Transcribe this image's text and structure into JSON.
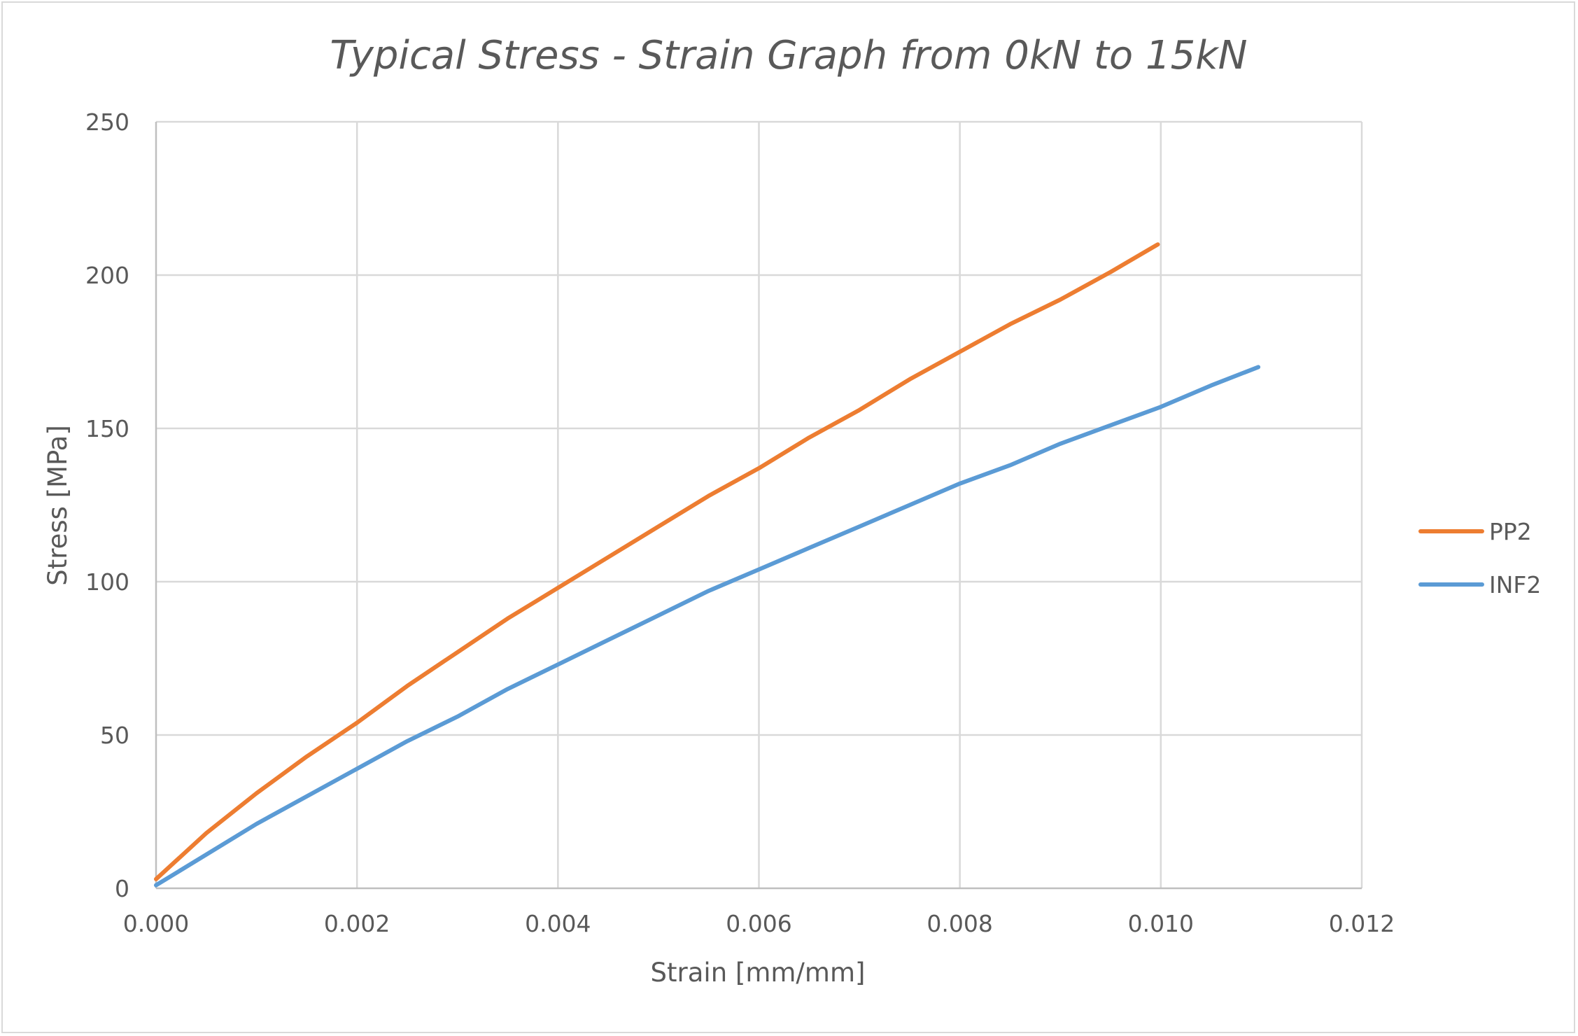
{
  "chart_data": {
    "type": "line",
    "title": "Typical Stress - Strain Graph from 0kN to 15kN",
    "xlabel": "Strain [mm/mm]",
    "ylabel": "Stress [MPa]",
    "xlim": [
      0,
      0.012
    ],
    "ylim": [
      0,
      250
    ],
    "x_ticks": [
      "0.000",
      "0.002",
      "0.004",
      "0.006",
      "0.008",
      "0.010",
      "0.012"
    ],
    "x_tick_values": [
      0,
      0.002,
      0.004,
      0.006,
      0.008,
      0.01,
      0.012
    ],
    "y_ticks": [
      "0",
      "50",
      "100",
      "150",
      "200",
      "250"
    ],
    "y_tick_values": [
      0,
      50,
      100,
      150,
      200,
      250
    ],
    "grid": true,
    "legend_position": "right",
    "series": [
      {
        "name": "PP2",
        "color": "#ed7d31",
        "x": [
          0,
          0.0005,
          0.001,
          0.0015,
          0.002,
          0.0025,
          0.003,
          0.0035,
          0.004,
          0.0045,
          0.005,
          0.0055,
          0.006,
          0.0065,
          0.007,
          0.0075,
          0.008,
          0.0085,
          0.009,
          0.0095,
          0.00997
        ],
        "y": [
          3,
          18,
          31,
          43,
          54,
          66,
          77,
          88,
          98,
          108,
          118,
          128,
          137,
          147,
          156,
          166,
          175,
          184,
          192,
          201,
          210
        ]
      },
      {
        "name": "INF2",
        "color": "#5b9bd5",
        "x": [
          0,
          0.0005,
          0.001,
          0.0015,
          0.002,
          0.0025,
          0.003,
          0.0035,
          0.004,
          0.0045,
          0.005,
          0.0055,
          0.006,
          0.0065,
          0.007,
          0.0075,
          0.008,
          0.0085,
          0.009,
          0.0095,
          0.01,
          0.0105,
          0.01097
        ],
        "y": [
          1,
          11,
          21,
          30,
          39,
          48,
          56,
          65,
          73,
          81,
          89,
          97,
          104,
          111,
          118,
          125,
          132,
          138,
          145,
          151,
          157,
          164,
          170
        ]
      }
    ]
  }
}
